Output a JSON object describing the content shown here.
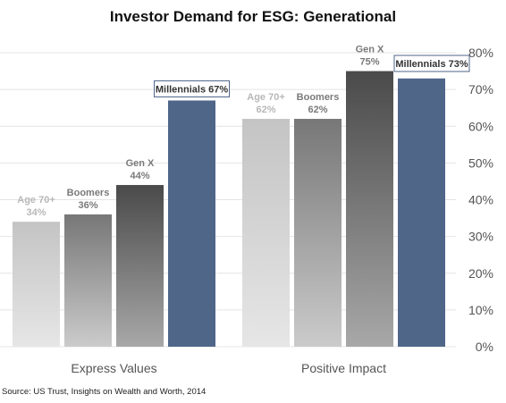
{
  "chart_data": {
    "type": "bar",
    "title": "Investor Demand for ESG: Generational",
    "source": "Source: US Trust, Insights on Wealth and Worth, 2014",
    "categories": [
      "Express Values",
      "Positive Impact"
    ],
    "series": [
      {
        "name": "Age 70+",
        "values": [
          34,
          62
        ]
      },
      {
        "name": "Boomers",
        "values": [
          36,
          62
        ]
      },
      {
        "name": "Gen X",
        "values": [
          44,
          75
        ]
      },
      {
        "name": "Millennials",
        "values": [
          67,
          73
        ]
      }
    ],
    "value_labels": [
      [
        "34%",
        "62%"
      ],
      [
        "36%",
        "62%"
      ],
      [
        "44%",
        "75%"
      ],
      [
        "67%",
        "73%"
      ]
    ],
    "ylim": [
      0,
      80
    ],
    "yticks": [
      0,
      10,
      20,
      30,
      40,
      50,
      60,
      70,
      80
    ],
    "ytick_labels": [
      "0%",
      "10%",
      "20%",
      "30%",
      "40%",
      "50%",
      "60%",
      "70%",
      "80%"
    ],
    "yaxis_position": "right",
    "grid": true,
    "legend": "none",
    "colors": {
      "age70": [
        "#c4c4c4",
        "#e6e6e6"
      ],
      "boomers": [
        "#777777",
        "#cbcbcb"
      ],
      "genx": [
        "#4a4a4a",
        "#a8a8a8"
      ],
      "millennials": "#4f6689",
      "label_light": "#b8b8b8",
      "label_mid": "#7a7a7a",
      "label_dark": "#666666",
      "grid": "#e4e4e4"
    }
  }
}
